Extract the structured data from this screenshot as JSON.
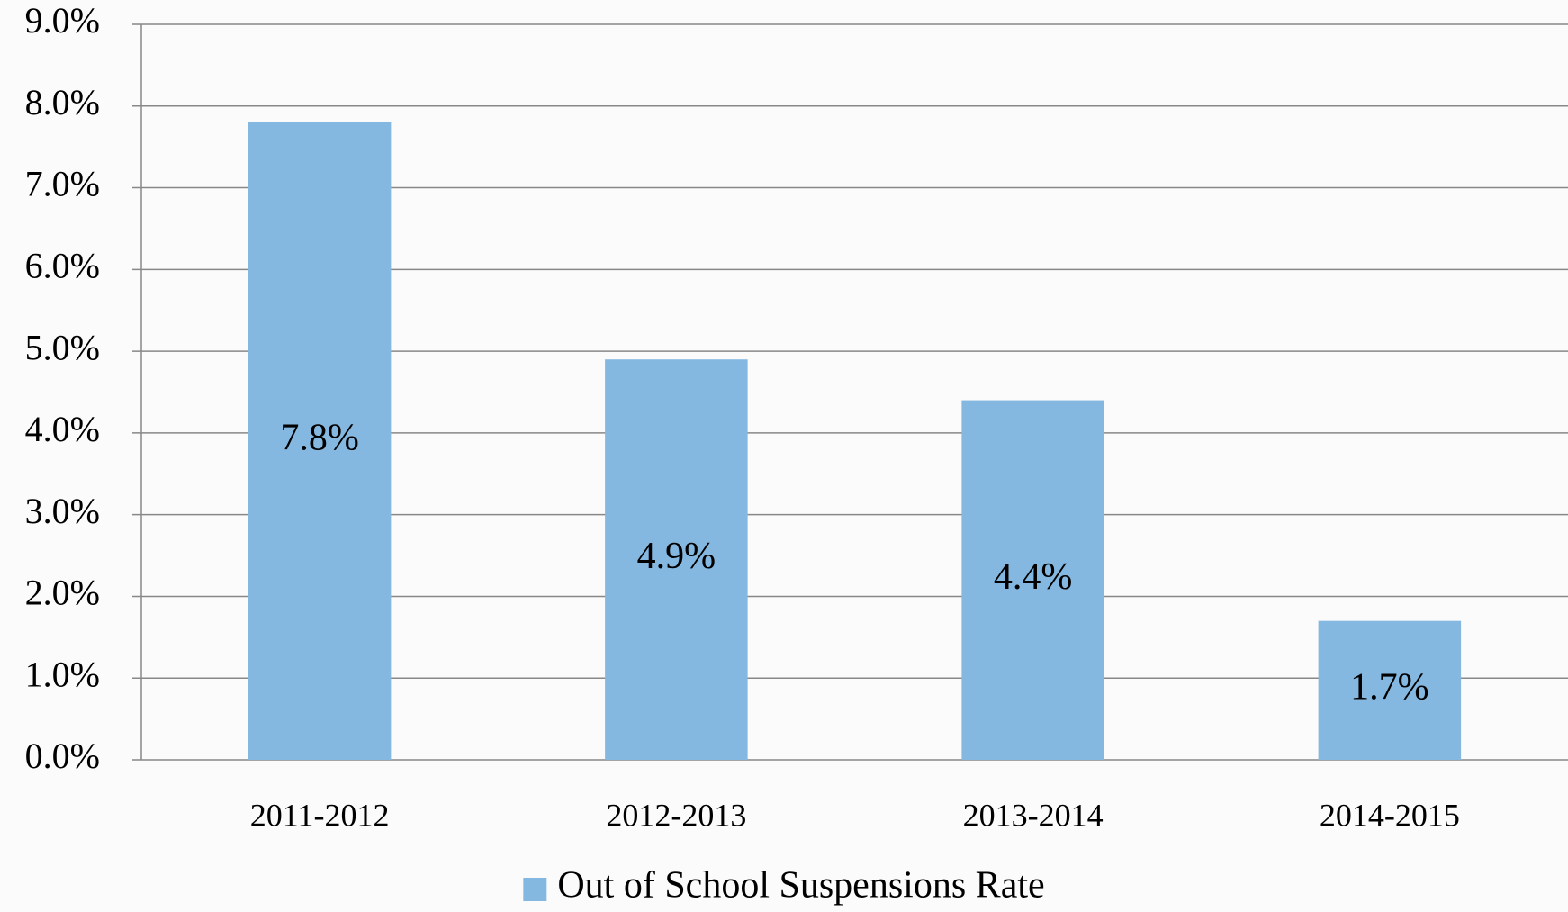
{
  "chart_data": {
    "type": "bar",
    "categories": [
      "2011-2012",
      "2012-2013",
      "2013-2014",
      "2014-2015"
    ],
    "series": [
      {
        "name": "Out of School Suspensions Rate",
        "color": "#85b8e0",
        "values": [
          7.8,
          4.9,
          4.4,
          1.7
        ],
        "value_labels": [
          "7.8%",
          "4.9%",
          "4.4%",
          "1.7%"
        ]
      }
    ],
    "ylim": [
      0,
      9
    ],
    "yticks": [
      {
        "value": 0,
        "label": "0.0%"
      },
      {
        "value": 1,
        "label": "1.0%"
      },
      {
        "value": 2,
        "label": "2.0%"
      },
      {
        "value": 3,
        "label": "3.0%"
      },
      {
        "value": 4,
        "label": "4.0%"
      },
      {
        "value": 5,
        "label": "5.0%"
      },
      {
        "value": 6,
        "label": "6.0%"
      },
      {
        "value": 7,
        "label": "7.0%"
      },
      {
        "value": 8,
        "label": "8.0%"
      },
      {
        "value": 9,
        "label": "9.0%"
      }
    ],
    "grid": true
  }
}
